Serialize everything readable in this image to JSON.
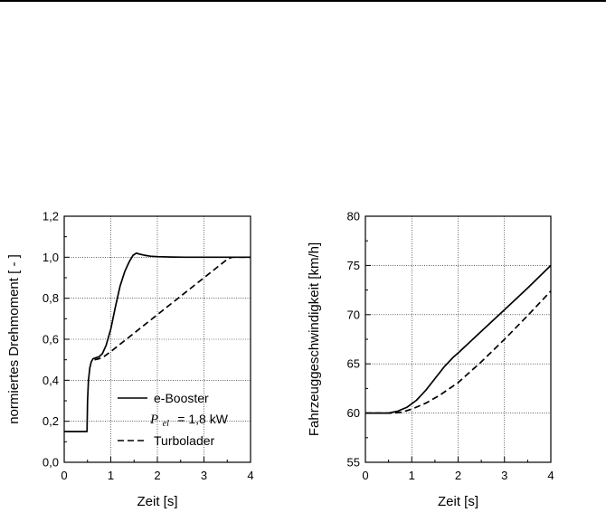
{
  "chart_data": [
    {
      "type": "line",
      "xlabel": "Zeit [s]",
      "ylabel": "normiertes Drehmoment [ - ]",
      "xlim": [
        0,
        4
      ],
      "ylim": [
        0,
        1.2
      ],
      "xticks": [
        "0",
        "1",
        "2",
        "3",
        "4"
      ],
      "yticks": [
        "0,0",
        "0,2",
        "0,4",
        "0,6",
        "0,8",
        "1,0",
        "1,2"
      ],
      "grid": true,
      "legend_position": "bottom-right",
      "legend": {
        "solid_label": "e-Booster",
        "param_symbol": "P",
        "param_subscript": "el",
        "param_value": "= 1,8 kW",
        "dashed_label": "Turbolader"
      },
      "series": [
        {
          "name": "e-Booster",
          "style": "solid",
          "x": [
            0,
            0.49,
            0.5,
            0.52,
            0.55,
            0.58,
            0.62,
            0.68,
            0.75,
            0.82,
            0.9,
            1.0,
            1.1,
            1.2,
            1.3,
            1.4,
            1.48,
            1.55,
            1.62,
            1.72,
            1.85,
            2.0,
            2.3,
            2.6,
            3.0,
            3.5,
            4.0
          ],
          "y": [
            0.15,
            0.15,
            0.3,
            0.4,
            0.46,
            0.49,
            0.505,
            0.51,
            0.515,
            0.53,
            0.57,
            0.65,
            0.76,
            0.86,
            0.93,
            0.98,
            1.01,
            1.02,
            1.015,
            1.01,
            1.005,
            1.003,
            1.001,
            1.0,
            1.0,
            1.0,
            1.0
          ]
        },
        {
          "name": "Turbolader",
          "style": "dashed",
          "x": [
            0.65,
            0.75,
            0.85,
            1.0,
            1.5,
            2.0,
            2.5,
            3.0,
            3.5,
            3.6,
            3.75,
            4.0
          ],
          "y": [
            0.5,
            0.505,
            0.515,
            0.54,
            0.63,
            0.72,
            0.81,
            0.9,
            0.99,
            1.0,
            1.0,
            1.0
          ]
        }
      ]
    },
    {
      "type": "line",
      "xlabel": "Zeit [s]",
      "ylabel": "Fahrzeuggeschwindigkeit [km/h]",
      "xlim": [
        0,
        4
      ],
      "ylim": [
        55,
        80
      ],
      "xticks": [
        "0",
        "1",
        "2",
        "3",
        "4"
      ],
      "yticks": [
        "55",
        "60",
        "65",
        "70",
        "75",
        "80"
      ],
      "grid": true,
      "series": [
        {
          "name": "e-Booster",
          "style": "solid",
          "x": [
            0,
            0.5,
            0.7,
            0.9,
            1.1,
            1.3,
            1.5,
            1.7,
            1.9,
            2.0,
            2.5,
            3.0,
            3.5,
            4.0
          ],
          "y": [
            60,
            60,
            60.2,
            60.6,
            61.3,
            62.3,
            63.5,
            64.7,
            65.7,
            66.1,
            68.3,
            70.5,
            72.7,
            75.0
          ]
        },
        {
          "name": "Turbolader",
          "style": "dashed",
          "x": [
            0,
            0.6,
            0.8,
            1.0,
            1.3,
            1.6,
            2.0,
            2.5,
            3.0,
            3.5,
            4.0
          ],
          "y": [
            60,
            60,
            60.1,
            60.4,
            61.0,
            61.8,
            63.1,
            65.2,
            67.5,
            69.9,
            72.4
          ]
        }
      ]
    }
  ]
}
